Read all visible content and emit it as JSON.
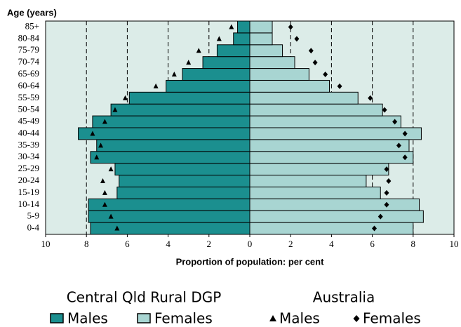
{
  "chart_data": {
    "type": "population-pyramid",
    "ylabel": "Age (years)",
    "xlabel": "Proportion of population: per cent",
    "categories": [
      "0-4",
      "5-9",
      "10-14",
      "15-19",
      "20-24",
      "25-29",
      "30-34",
      "35-39",
      "40-44",
      "45-49",
      "50-54",
      "55-59",
      "60-64",
      "65-69",
      "70-74",
      "75-79",
      "80-84",
      "85+"
    ],
    "xlim": [
      -10,
      10
    ],
    "xticks": [
      {
        "value": -10,
        "label": "10"
      },
      {
        "value": -8,
        "label": "8"
      },
      {
        "value": -6,
        "label": "6"
      },
      {
        "value": -4,
        "label": "4"
      },
      {
        "value": -2,
        "label": "2"
      },
      0,
      2,
      4,
      6,
      8,
      10
    ],
    "grid": true,
    "groups": [
      {
        "name": "Central Qld Rural DGP",
        "series": [
          {
            "name": "Males",
            "color": "#1b8f8f",
            "values": [
              7.8,
              7.9,
              7.9,
              6.5,
              6.4,
              6.6,
              7.8,
              7.5,
              8.4,
              7.7,
              6.8,
              5.9,
              4.1,
              3.3,
              2.3,
              1.6,
              0.8,
              0.6
            ]
          },
          {
            "name": "Females",
            "color": "#a8d5d2",
            "values": [
              8.0,
              8.5,
              8.3,
              6.4,
              5.7,
              6.8,
              8.0,
              7.8,
              8.4,
              7.4,
              6.5,
              5.3,
              3.9,
              2.9,
              2.2,
              1.6,
              1.1,
              1.1
            ]
          }
        ]
      },
      {
        "name": "Australia",
        "series": [
          {
            "name": "Males",
            "marker": "triangle",
            "color": "#000000",
            "values": [
              6.5,
              6.8,
              7.1,
              7.1,
              7.2,
              6.8,
              7.5,
              7.3,
              7.7,
              7.1,
              6.6,
              6.1,
              4.6,
              3.7,
              3.0,
              2.5,
              1.5,
              0.9
            ]
          },
          {
            "name": "Females",
            "marker": "diamond",
            "color": "#000000",
            "values": [
              6.1,
              6.4,
              6.7,
              6.7,
              6.8,
              6.7,
              7.6,
              7.3,
              7.6,
              7.1,
              6.6,
              5.9,
              4.4,
              3.7,
              3.2,
              3.0,
              2.3,
              2.0
            ]
          }
        ]
      }
    ]
  }
}
